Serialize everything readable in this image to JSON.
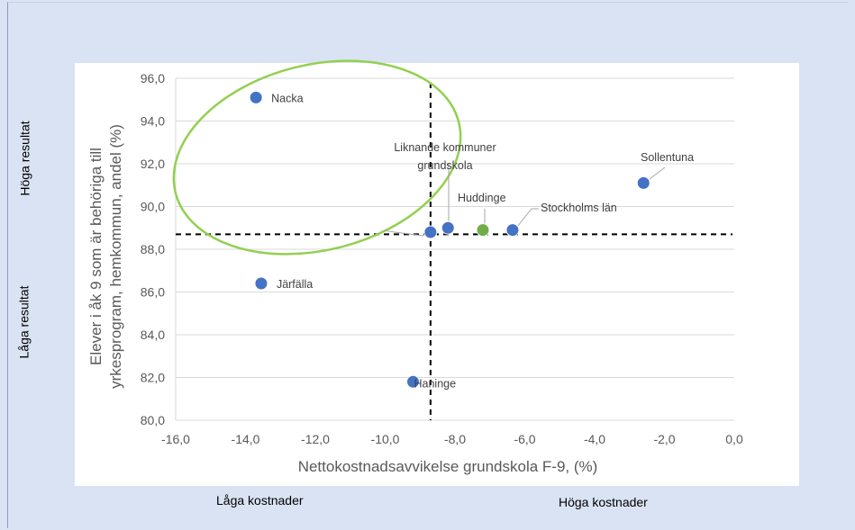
{
  "quadrant_labels": {
    "top_left": "Höga resultat",
    "bottom_left": "Låga resultat",
    "bottom_left_cost": "Låga kostnader",
    "bottom_right_cost": "Höga kostnader"
  },
  "colors": {
    "background": "#dae3f3",
    "point_blue": "#4472c4",
    "point_green": "#70ad47",
    "ellipse": "#92d050",
    "grid": "#d9d9d9"
  },
  "chart_data": {
    "type": "scatter",
    "title": "",
    "xlabel": "Nettokostnadsavvikelse grundskola F-9, (%)",
    "ylabel_lines": [
      "Elever i åk 9 som är behöriga till",
      "yrkesprogram, hemkommun, andel (%)"
    ],
    "xlim": [
      -16,
      0
    ],
    "ylim": [
      80,
      96
    ],
    "x_ticks": [
      "-16,0",
      "-14,0",
      "-12,0",
      "-10,0",
      "-8,0",
      "-6,0",
      "-4,0",
      "-2,0",
      "0,0"
    ],
    "x_tick_values": [
      -16,
      -14,
      -12,
      -10,
      -8,
      -6,
      -4,
      -2,
      0
    ],
    "y_ticks": [
      "80,0",
      "82,0",
      "84,0",
      "86,0",
      "88,0",
      "90,0",
      "92,0",
      "94,0",
      "96,0"
    ],
    "y_tick_values": [
      80,
      82,
      84,
      86,
      88,
      90,
      92,
      94,
      96
    ],
    "grid": "horizontal",
    "reference_lines": {
      "x": -8.7,
      "y": 88.7
    },
    "points": [
      {
        "label": "Nacka",
        "x": -13.7,
        "y": 95.1,
        "color": "blue"
      },
      {
        "label": "Järfälla",
        "x": -13.55,
        "y": 86.4,
        "color": "blue"
      },
      {
        "label": "Haninge",
        "x": -9.2,
        "y": 81.8,
        "color": "blue"
      },
      {
        "label": "",
        "x": -8.7,
        "y": 88.8,
        "color": "blue"
      },
      {
        "label": "Liknande kommuner grundskola",
        "x": -8.2,
        "y": 89.0,
        "color": "blue"
      },
      {
        "label": "Huddinge",
        "x": -7.2,
        "y": 88.9,
        "color": "green"
      },
      {
        "label": "Stockholms län",
        "x": -6.35,
        "y": 88.9,
        "color": "blue"
      },
      {
        "label": "Sollentuna",
        "x": -2.6,
        "y": 91.1,
        "color": "blue"
      }
    ]
  }
}
